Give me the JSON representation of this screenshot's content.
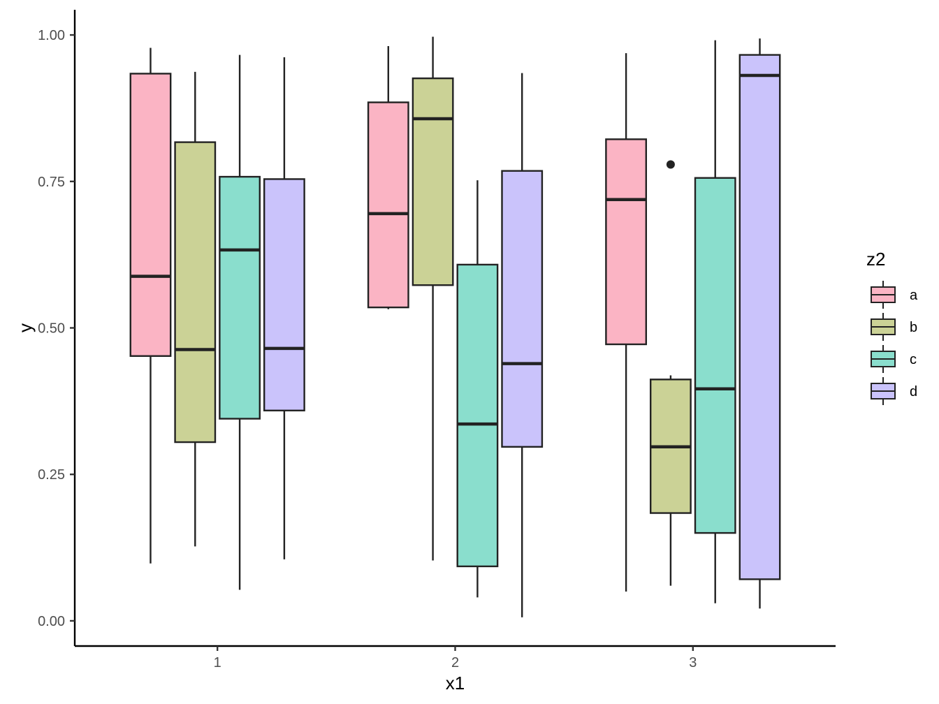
{
  "chart_data": {
    "type": "boxplot",
    "xlabel": "x1",
    "ylabel": "y",
    "ylim": [
      -0.043,
      1.043
    ],
    "y_ticks": [
      "0.00",
      "0.25",
      "0.50",
      "0.75",
      "1.00"
    ],
    "categories": [
      "1",
      "2",
      "3"
    ],
    "legend": {
      "title": "z2",
      "position": "right",
      "entries": [
        "a",
        "b",
        "c",
        "d"
      ]
    },
    "colors": {
      "a": "#fbb4c4",
      "b": "#cbd296",
      "c": "#8adecd",
      "d": "#cac3fb",
      "outline": "#222222"
    },
    "series": [
      {
        "name": "a",
        "boxes": [
          {
            "category": "1",
            "lower_whisker": 0.098,
            "q1": 0.452,
            "median": 0.588,
            "q3": 0.934,
            "upper_whisker": 0.978,
            "outliers": []
          },
          {
            "category": "2",
            "lower_whisker": 0.532,
            "q1": 0.535,
            "median": 0.695,
            "q3": 0.885,
            "upper_whisker": 0.981,
            "outliers": []
          },
          {
            "category": "3",
            "lower_whisker": 0.05,
            "q1": 0.472,
            "median": 0.719,
            "q3": 0.822,
            "upper_whisker": 0.969,
            "outliers": []
          }
        ]
      },
      {
        "name": "b",
        "boxes": [
          {
            "category": "1",
            "lower_whisker": 0.127,
            "q1": 0.305,
            "median": 0.463,
            "q3": 0.817,
            "upper_whisker": 0.937,
            "outliers": []
          },
          {
            "category": "2",
            "lower_whisker": 0.103,
            "q1": 0.573,
            "median": 0.857,
            "q3": 0.926,
            "upper_whisker": 0.997,
            "outliers": []
          },
          {
            "category": "3",
            "lower_whisker": 0.06,
            "q1": 0.184,
            "median": 0.297,
            "q3": 0.412,
            "upper_whisker": 0.419,
            "outliers": [
              0.779
            ]
          }
        ]
      },
      {
        "name": "c",
        "boxes": [
          {
            "category": "1",
            "lower_whisker": 0.053,
            "q1": 0.345,
            "median": 0.633,
            "q3": 0.758,
            "upper_whisker": 0.966,
            "outliers": []
          },
          {
            "category": "2",
            "lower_whisker": 0.04,
            "q1": 0.093,
            "median": 0.336,
            "q3": 0.608,
            "upper_whisker": 0.752,
            "outliers": []
          },
          {
            "category": "3",
            "lower_whisker": 0.03,
            "q1": 0.15,
            "median": 0.396,
            "q3": 0.756,
            "upper_whisker": 0.991,
            "outliers": []
          }
        ]
      },
      {
        "name": "d",
        "boxes": [
          {
            "category": "1",
            "lower_whisker": 0.105,
            "q1": 0.359,
            "median": 0.465,
            "q3": 0.754,
            "upper_whisker": 0.962,
            "outliers": []
          },
          {
            "category": "2",
            "lower_whisker": 0.006,
            "q1": 0.297,
            "median": 0.439,
            "q3": 0.768,
            "upper_whisker": 0.935,
            "outliers": []
          },
          {
            "category": "3",
            "lower_whisker": 0.021,
            "q1": 0.071,
            "median": 0.931,
            "q3": 0.966,
            "upper_whisker": 0.994,
            "outliers": []
          }
        ]
      }
    ]
  }
}
